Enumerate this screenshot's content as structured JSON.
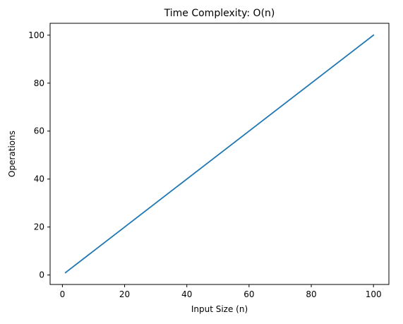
{
  "chart_data": {
    "type": "line",
    "title": "Time Complexity: O(n)",
    "xlabel": "Input Size (n)",
    "ylabel": "Operations",
    "xlim": [
      -3.95,
      104.95
    ],
    "ylim": [
      -3.95,
      104.95
    ],
    "x_ticks": [
      0,
      20,
      40,
      60,
      80,
      100
    ],
    "y_ticks": [
      0,
      20,
      40,
      60,
      80,
      100
    ],
    "grid": false,
    "series": [
      {
        "color": "#1f77b4",
        "x": [
          1,
          100
        ],
        "y": [
          1,
          100
        ]
      }
    ]
  }
}
